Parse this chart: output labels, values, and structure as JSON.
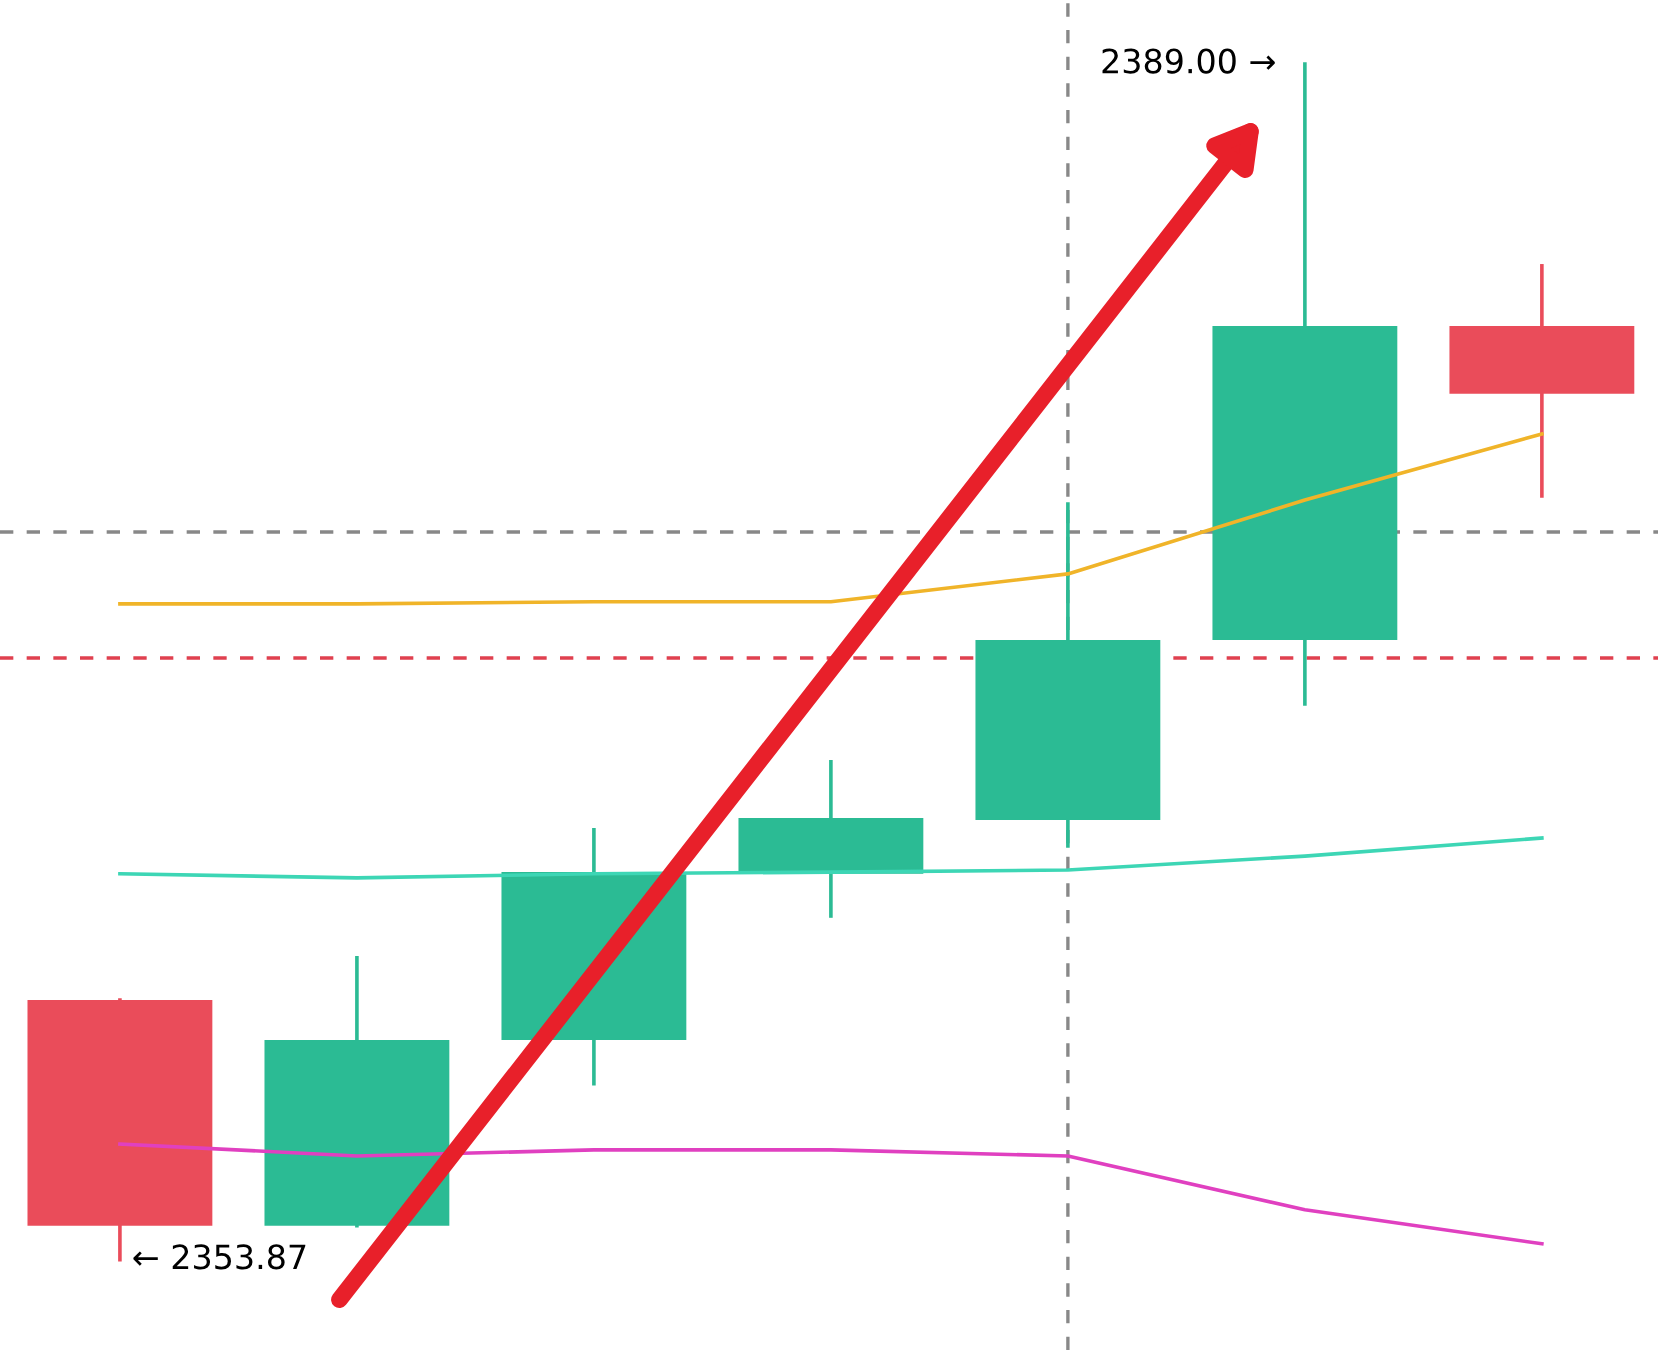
{
  "chart_data": {
    "type": "candlestick",
    "categories": [
      null,
      null,
      null,
      null,
      null,
      null,
      null
    ],
    "ohlc": [
      [
        2361.5,
        2361.5,
        2353.87,
        2354.87
      ],
      [
        2354.87,
        2362.74,
        2354.87,
        2360.33
      ],
      [
        2360.33,
        2366.5,
        2359.04,
        2365.26
      ],
      [
        2365.21,
        2368.5,
        2363.97,
        2366.85
      ],
      [
        2366.79,
        2376.07,
        2366.03,
        2372.08
      ],
      [
        2372.08,
        2389.0,
        2370.2,
        2381.3
      ],
      [
        2381.3,
        2383.07,
        2376.31,
        2379.31
      ]
    ],
    "colors": [
      "#ea4c5a",
      "#2bbb94",
      "#2bbb94",
      "#2bbb94",
      "#2bbb94",
      "#2bbb94",
      "#ea4c5a"
    ],
    "series": [
      {
        "type": "line",
        "color": "#f0b429",
        "values": [
          2373.14,
          2373.14,
          2373.2,
          2373.2,
          2374.02,
          2376.19,
          2378.13
        ]
      },
      {
        "type": "line",
        "color": "#3dd6b5",
        "values": [
          2365.21,
          2365.09,
          2365.21,
          2365.26,
          2365.32,
          2365.73,
          2366.26
        ]
      },
      {
        "type": "line",
        "color": "#e040c0",
        "values": [
          2357.27,
          2356.92,
          2357.1,
          2357.1,
          2356.92,
          2355.34,
          2354.34
        ]
      }
    ],
    "ref_lines": [
      {
        "axis": "y",
        "value": 2375.25,
        "color": "#888888",
        "line_style": "dashed"
      },
      {
        "axis": "y",
        "value": 2371.55,
        "color": "#e0404f",
        "line_style": "dashed"
      }
    ],
    "annotations": [
      "2389.00 →",
      "← 2353.87"
    ],
    "ylim": [
      2351.22,
      2390.88
    ]
  }
}
